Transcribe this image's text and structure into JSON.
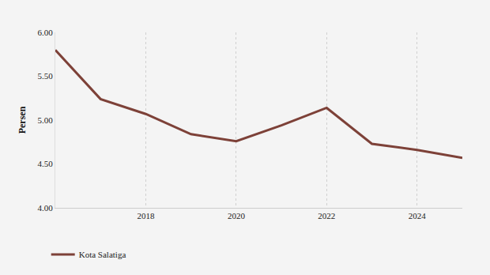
{
  "chart_data": {
    "type": "line",
    "y_label": "Persen",
    "x": [
      2016,
      2017,
      2018,
      2019,
      2020,
      2021,
      2022,
      2023,
      2024,
      2025
    ],
    "series": [
      {
        "name": "Kota Salatiga",
        "color": "#7d4138",
        "values": [
          5.8,
          5.24,
          5.07,
          4.84,
          4.76,
          4.94,
          5.14,
          4.73,
          4.66,
          4.57
        ]
      }
    ],
    "xlim": [
      2016,
      2025
    ],
    "xticks": [
      2018,
      2020,
      2022,
      2024
    ],
    "ylim": [
      4,
      6
    ],
    "yticks": [
      {
        "value": 4,
        "label": "4.00"
      },
      {
        "value": 4.5,
        "label": "4.50"
      },
      {
        "value": 5,
        "label": "5.00"
      },
      {
        "value": 5.5,
        "label": "5.50"
      },
      {
        "value": 6,
        "label": "6.00"
      }
    ],
    "grid": true,
    "legend": "bottom-left"
  }
}
